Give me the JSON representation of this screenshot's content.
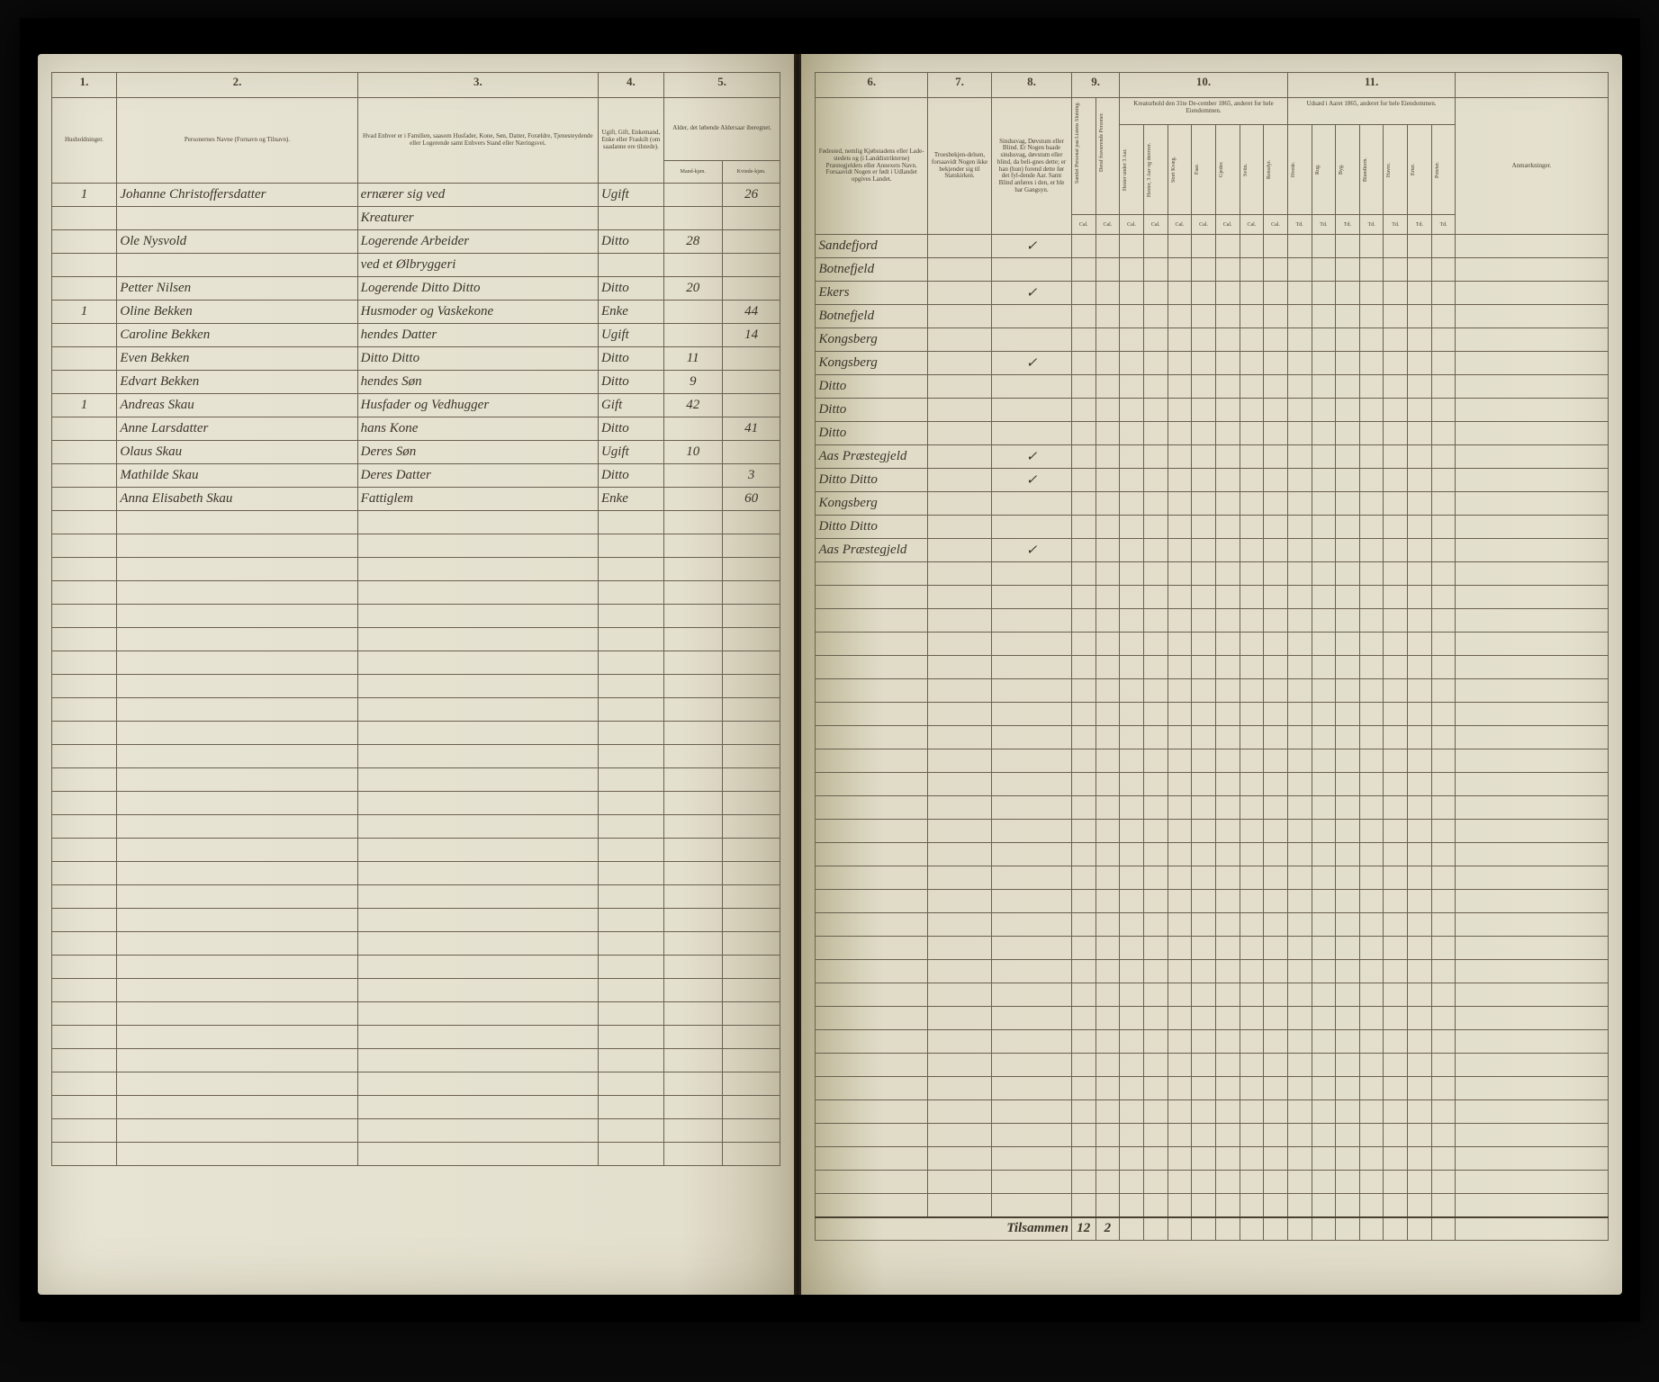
{
  "left": {
    "columns": {
      "c1": "1.",
      "c2": "2.",
      "c3": "3.",
      "c4": "4.",
      "c5": "5."
    },
    "headers": {
      "h1": "Husholdninger.",
      "h2": "Personernes Navne (Fornavn og Tilnavn).",
      "h3": "Hvad Enhver er i Familien, saasom Husfader, Kone, Søn, Datter, Forældre, Tjenesteydende eller Logerende samt Enhvers Stand eller Næringsvei.",
      "h4": "Ugift, Gift, Enkemand, Enke eller Fraskilt (om saadanne ere tilstede).",
      "h5": "Alder, det løbende Aldersaar iberegnet.",
      "h5a": "Mand-kjøn.",
      "h5b": "Kvinde-kjøn."
    },
    "rows": [
      {
        "hh": "1",
        "name": "Johanne Christoffersdatter",
        "rel": "ernærer sig ved",
        "stat": "Ugift",
        "m": "",
        "f": "26"
      },
      {
        "hh": "",
        "name": "",
        "rel": "Kreaturer",
        "stat": "",
        "m": "",
        "f": ""
      },
      {
        "hh": "",
        "name": "Ole Nysvold",
        "rel": "Logerende Arbeider",
        "stat": "Ditto",
        "m": "28",
        "f": ""
      },
      {
        "hh": "",
        "name": "",
        "rel": "ved et Ølbryggeri",
        "stat": "",
        "m": "",
        "f": ""
      },
      {
        "hh": "",
        "name": "Petter Nilsen",
        "rel": "Logerende Ditto Ditto",
        "stat": "Ditto",
        "m": "20",
        "f": ""
      },
      {
        "hh": "1",
        "name": "Oline Bekken",
        "rel": "Husmoder og Vaskekone",
        "stat": "Enke",
        "m": "",
        "f": "44"
      },
      {
        "hh": "",
        "name": "Caroline Bekken",
        "rel": "hendes Datter",
        "stat": "Ugift",
        "m": "",
        "f": "14"
      },
      {
        "hh": "",
        "name": "Even Bekken",
        "rel": "Ditto Ditto",
        "stat": "Ditto",
        "m": "11",
        "f": ""
      },
      {
        "hh": "",
        "name": "Edvart Bekken",
        "rel": "hendes Søn",
        "stat": "Ditto",
        "m": "9",
        "f": ""
      },
      {
        "hh": "1",
        "name": "Andreas Skau",
        "rel": "Husfader og Vedhugger",
        "stat": "Gift",
        "m": "42",
        "f": ""
      },
      {
        "hh": "",
        "name": "Anne Larsdatter",
        "rel": "hans Kone",
        "stat": "Ditto",
        "m": "",
        "f": "41"
      },
      {
        "hh": "",
        "name": "Olaus Skau",
        "rel": "Deres Søn",
        "stat": "Ugift",
        "m": "10",
        "f": ""
      },
      {
        "hh": "",
        "name": "Mathilde Skau",
        "rel": "Deres Datter",
        "stat": "Ditto",
        "m": "",
        "f": "3"
      },
      {
        "hh": "",
        "name": "Anna Elisabeth Skau",
        "rel": "Fattiglem",
        "stat": "Enke",
        "m": "",
        "f": "60"
      }
    ],
    "empty_rows": 28
  },
  "right": {
    "columns": {
      "c6": "6.",
      "c7": "7.",
      "c8": "8.",
      "c9": "9.",
      "c10": "10.",
      "c11": "11."
    },
    "headers": {
      "h6": "Fødested, nemlig Kjøbstadens eller Lade-stedets og (i Landdistrikterne) Præstegjeldets eller Annexets Navn. Forsaavidt Nogen er født i Udlandet opgives Landet.",
      "h7": "Troesbekjen-delsen, forsaavidt Nogen ikke bekjender sig til Statskirken.",
      "h8": "Sindssvag, Døvstum eller Blind. Er Nogen baade sindssvag, døvstum eller blind, da beli-gnes dette; er han (hun) forend dette før det fyl-dende Aar. Samt Blind anføres i den, er ble har Gangsyn.",
      "h9a": "Samlet Personal paa Listens Slutning.",
      "h9b": "Deraf fraværende Personer.",
      "h10": "Kreaturhold den 31te De-cember 1865, anderet for hele Eiendommen.",
      "h10_cols": [
        "Hester under 3 Aar.",
        "Hester, 3 Aar og derover.",
        "Stort Kvæg.",
        "Faar.",
        "Gjeder.",
        "Sviin.",
        "Rensdyr."
      ],
      "h11": "Udsæd i Aaret 1865, anderet for hele Eiendommen.",
      "h11_cols": [
        "Hvede.",
        "Rug.",
        "Byg.",
        "Blandkorn.",
        "Havre.",
        "Erter.",
        "Poteter."
      ],
      "h12": "Anmærkninger.",
      "unit_cal": "Cal.",
      "unit_td": "Td."
    },
    "rows": [
      {
        "place": "Sandefjord",
        "rel": "",
        "sick": "✓",
        "p": "",
        "a": ""
      },
      {
        "place": "Botnefjeld",
        "rel": "",
        "sick": "",
        "p": "",
        "a": ""
      },
      {
        "place": "Ekers",
        "rel": "",
        "sick": "✓",
        "p": "",
        "a": ""
      },
      {
        "place": "Botnefjeld",
        "rel": "",
        "sick": "",
        "p": "",
        "a": ""
      },
      {
        "place": "Kongsberg",
        "rel": "",
        "sick": "",
        "p": "",
        "a": ""
      },
      {
        "place": "Kongsberg",
        "rel": "",
        "sick": "✓",
        "p": "",
        "a": ""
      },
      {
        "place": "Ditto",
        "rel": "",
        "sick": "",
        "p": "",
        "a": ""
      },
      {
        "place": "Ditto",
        "rel": "",
        "sick": "",
        "p": "",
        "a": ""
      },
      {
        "place": "Ditto",
        "rel": "",
        "sick": "",
        "p": "",
        "a": ""
      },
      {
        "place": "Aas Præstegjeld",
        "rel": "",
        "sick": "✓",
        "p": "",
        "a": ""
      },
      {
        "place": "Ditto Ditto",
        "rel": "",
        "sick": "✓",
        "p": "",
        "a": ""
      },
      {
        "place": "Kongsberg",
        "rel": "",
        "sick": "",
        "p": "",
        "a": ""
      },
      {
        "place": "Ditto Ditto",
        "rel": "",
        "sick": "",
        "p": "",
        "a": ""
      },
      {
        "place": "Aas Præstegjeld",
        "rel": "",
        "sick": "✓",
        "p": "",
        "a": ""
      }
    ],
    "empty_rows": 28,
    "sum_label": "Tilsammen",
    "sum_p": "12",
    "sum_a": "2"
  },
  "colors": {
    "paper": "#e4e0ce",
    "ink": "#3a3428",
    "rule": "#6a6050"
  }
}
